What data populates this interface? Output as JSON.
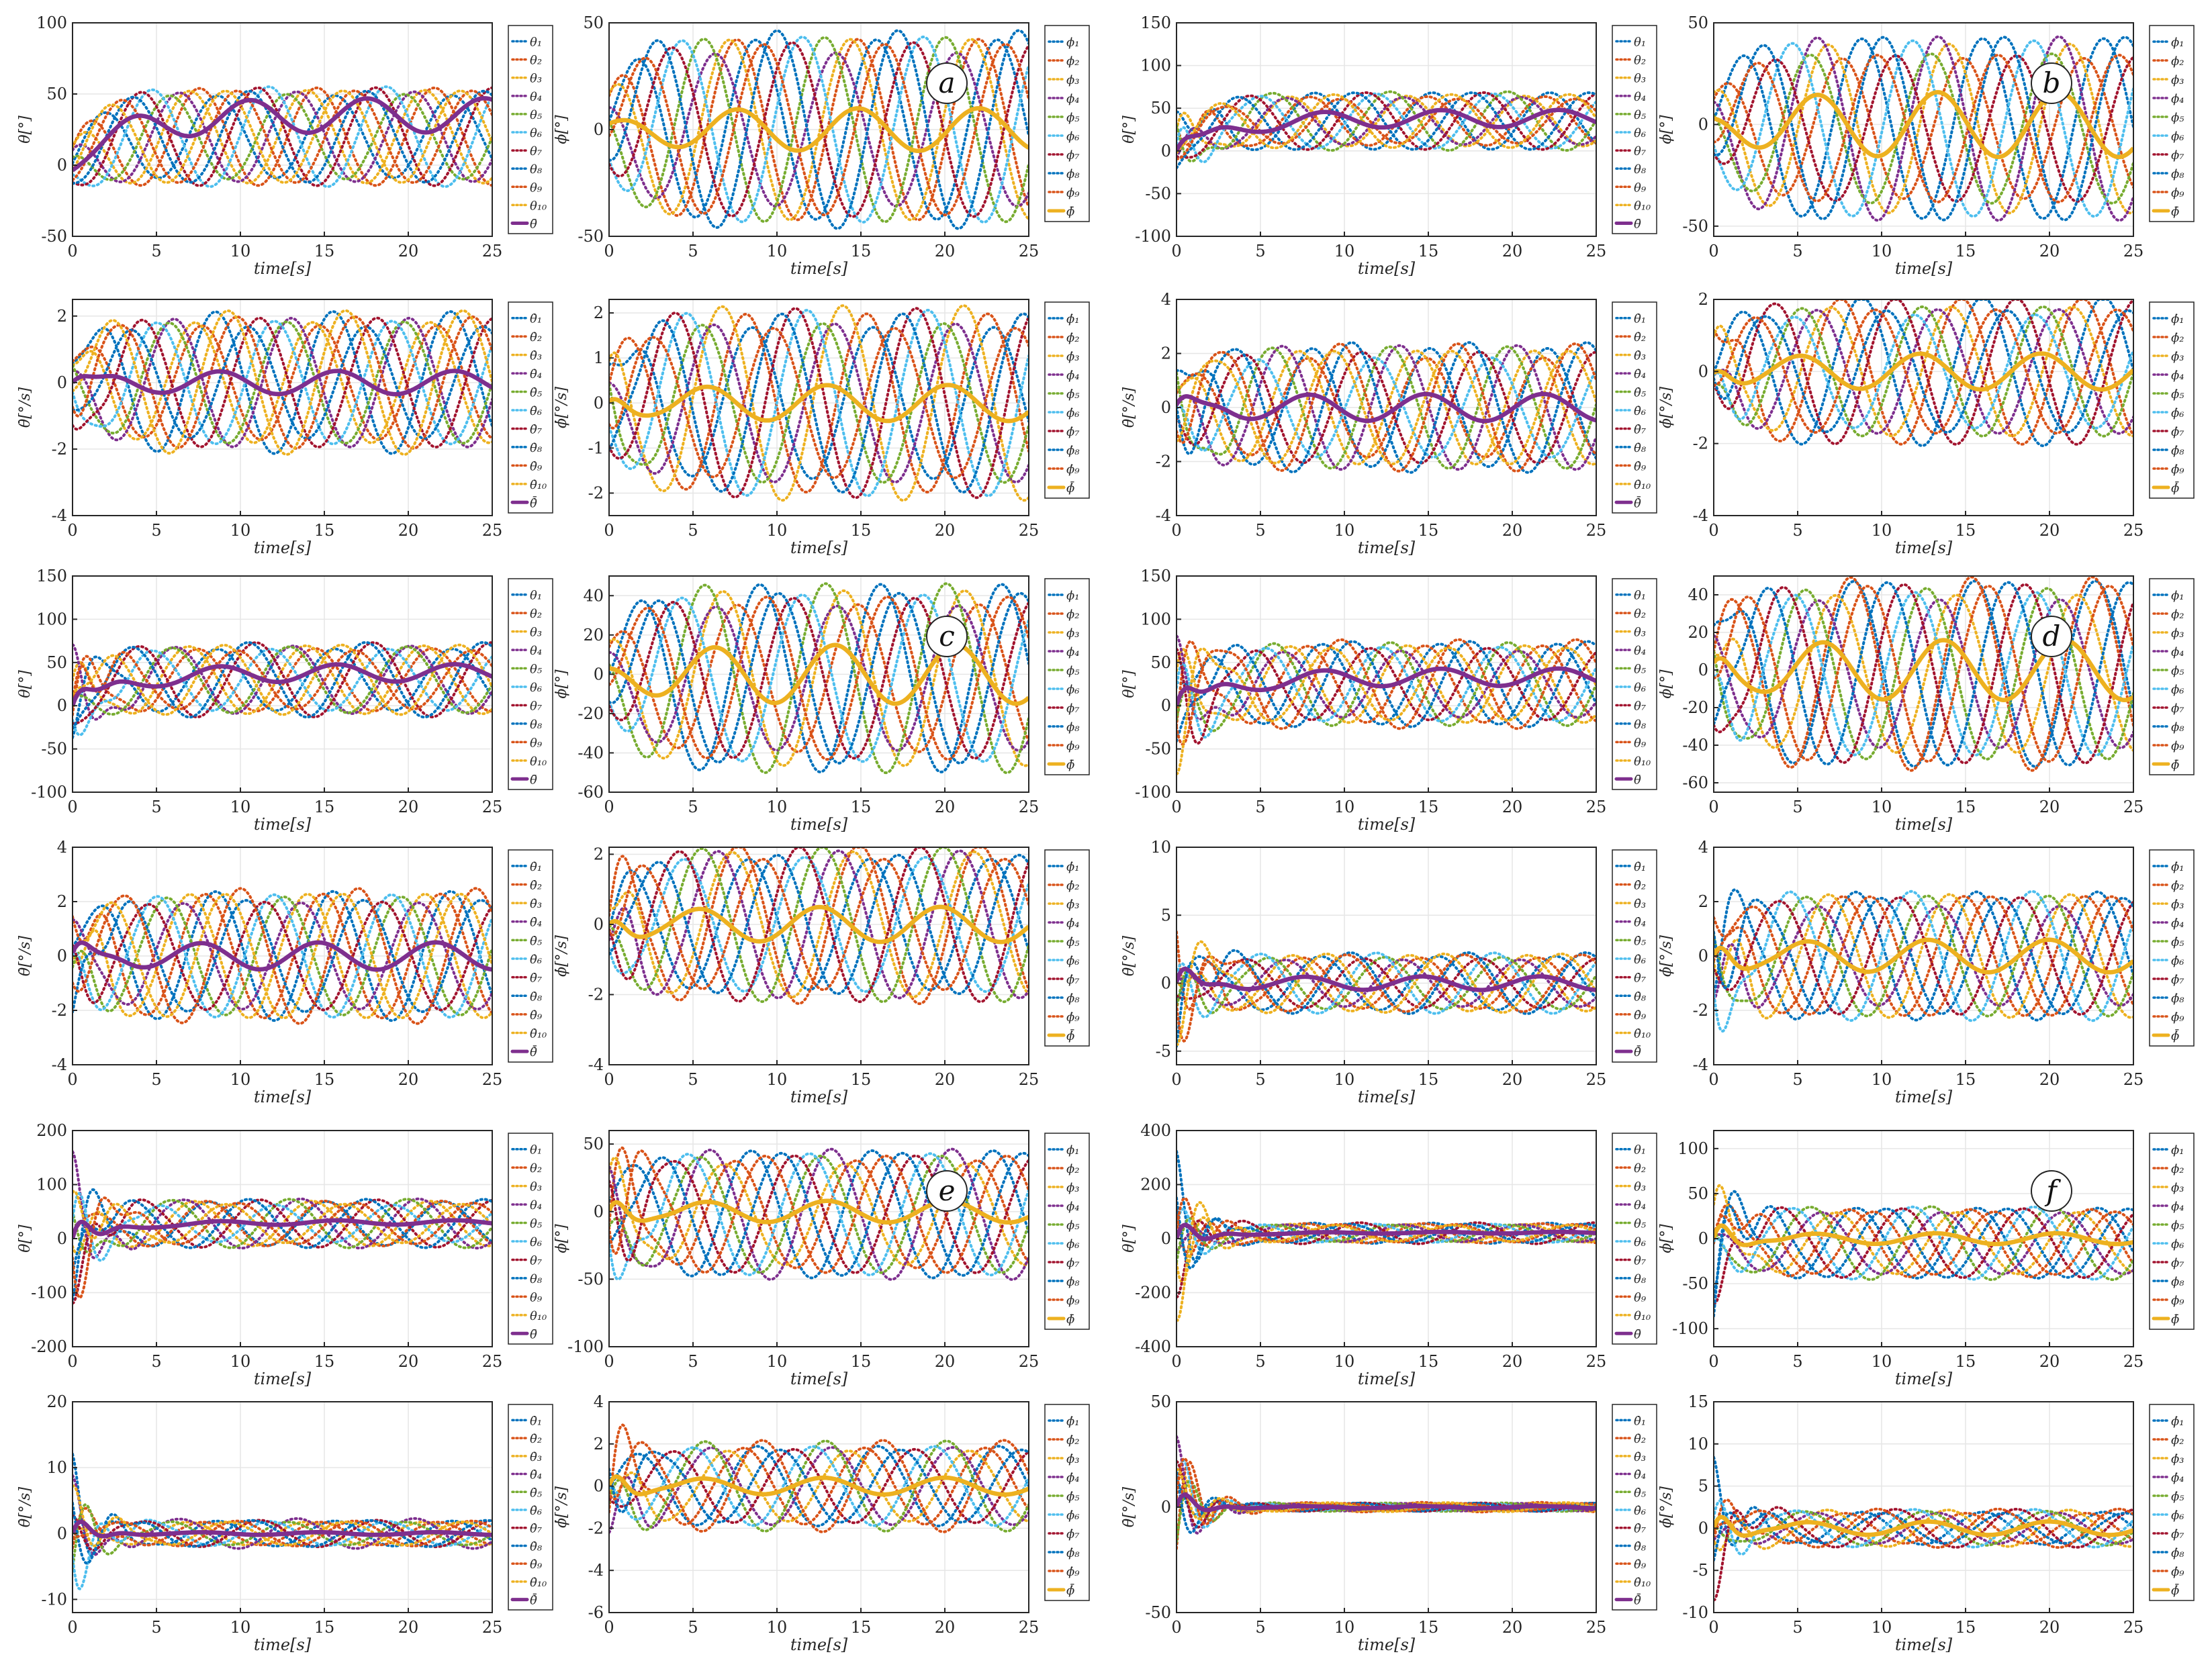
{
  "figure": {
    "columns": 4,
    "rows": 6,
    "time_axis": {
      "label": "time[s]",
      "range": [
        0,
        25
      ],
      "ticks": [
        0,
        5,
        10,
        15,
        20,
        25
      ]
    },
    "theta_legend": [
      "θ₁",
      "θ₂",
      "θ₃",
      "θ₄",
      "θ₅",
      "θ₆",
      "θ₇",
      "θ₈",
      "θ₉",
      "θ₁₀",
      "θ̄"
    ],
    "phi_legend": [
      "ϕ₁",
      "ϕ₂",
      "ϕ₃",
      "ϕ₄",
      "ϕ₅",
      "ϕ₆",
      "ϕ₇",
      "ϕ₈",
      "ϕ₉",
      "ϕ̄"
    ],
    "agent_colors": [
      "#0072BD",
      "#D95319",
      "#EDB120",
      "#7E2F8E",
      "#77AC30",
      "#4DBEEE",
      "#A2142F",
      "#0072BD",
      "#D95319",
      "#EDB120"
    ],
    "theta_mean_color": "#7E2F8E",
    "phi_mean_color": "#EDB120",
    "grid_color": "#e6e6e6"
  },
  "chart_data": [
    {
      "panel": "a",
      "type": "line",
      "row": 0,
      "col": 0,
      "kind": "theta",
      "ylabel": "θ[°]",
      "ylim": [
        -50,
        100
      ],
      "yticks": [
        -50,
        0,
        50,
        100
      ],
      "xlabel": "time[s]",
      "mean": {
        "base": 0,
        "drift": 35,
        "amp": 12,
        "period": 7,
        "phase": -1.6
      },
      "agents": {
        "amp": 32,
        "period": 7,
        "center": 20
      },
      "transient": 0
    },
    {
      "panel": "a",
      "type": "line",
      "row": 0,
      "col": 1,
      "kind": "phi",
      "ylabel": "ϕ[°]",
      "ylim": [
        -50,
        50
      ],
      "yticks": [
        -50,
        0,
        50
      ],
      "xlabel": "time[s]",
      "mean": {
        "base": 0,
        "drift": 0,
        "amp": 10,
        "period": 7.2,
        "phase": 1.2
      },
      "agents": {
        "amp": 42,
        "period": 7.2,
        "center": 0
      },
      "transient": 0,
      "annotation": "a"
    },
    {
      "panel": "b",
      "type": "line",
      "row": 0,
      "col": 2,
      "kind": "theta",
      "ylabel": "θ[°]",
      "ylim": [
        -100,
        150
      ],
      "yticks": [
        -100,
        -50,
        0,
        50,
        100,
        150
      ],
      "xlabel": "time[s]",
      "mean": {
        "base": 0,
        "drift": 38,
        "amp": 10,
        "period": 7,
        "phase": 0
      },
      "agents": {
        "amp": 30,
        "period": 7,
        "center": 35
      },
      "transient": 45
    },
    {
      "panel": "b",
      "type": "line",
      "row": 0,
      "col": 3,
      "kind": "phi",
      "ylabel": "ϕ[°]",
      "ylim": [
        -55,
        50
      ],
      "yticks": [
        -50,
        0,
        50
      ],
      "xlabel": "time[s]",
      "mean": {
        "base": 0,
        "drift": 0,
        "amp": 16,
        "period": 7.2,
        "phase": 2.5
      },
      "agents": {
        "amp": 40,
        "period": 7.2,
        "center": -2
      },
      "transient": 0,
      "annotation": "b"
    },
    {
      "panel": "a",
      "type": "line",
      "row": 1,
      "col": 0,
      "kind": "dtheta",
      "ylabel": "θ̇[°/s]",
      "ylim": [
        -4,
        2.5
      ],
      "yticks": [
        -4,
        -2,
        0,
        2
      ],
      "xlabel": "time[s]",
      "mean": {
        "base": 0,
        "drift": 0,
        "amp": 0.35,
        "period": 7,
        "phase": 0
      },
      "agents": {
        "amp": 1.9,
        "period": 7,
        "center": 0
      },
      "transient": 0.8
    },
    {
      "panel": "a",
      "type": "line",
      "row": 1,
      "col": 1,
      "kind": "dphi",
      "ylabel": "ϕ̇[°/s]",
      "ylim": [
        -2.5,
        2.3
      ],
      "yticks": [
        -2,
        -1,
        0,
        1,
        2
      ],
      "xlabel": "time[s]",
      "mean": {
        "base": 0,
        "drift": 0,
        "amp": 0.4,
        "period": 7.2,
        "phase": 2.8
      },
      "agents": {
        "amp": 1.9,
        "period": 7.2,
        "center": 0
      },
      "transient": 0.6
    },
    {
      "panel": "b",
      "type": "line",
      "row": 1,
      "col": 2,
      "kind": "dtheta",
      "ylabel": "θ̇[°/s]",
      "ylim": [
        -4,
        4
      ],
      "yticks": [
        -4,
        -2,
        0,
        2,
        4
      ],
      "xlabel": "time[s]",
      "mean": {
        "base": 0,
        "drift": 0,
        "amp": 0.5,
        "period": 7,
        "phase": 0.8
      },
      "agents": {
        "amp": 2.1,
        "period": 7,
        "center": 0
      },
      "transient": 1.5
    },
    {
      "panel": "b",
      "type": "line",
      "row": 1,
      "col": 3,
      "kind": "dphi",
      "ylabel": "ϕ̇[°/s]",
      "ylim": [
        -4,
        2
      ],
      "yticks": [
        -4,
        -2,
        0,
        2
      ],
      "xlabel": "time[s]",
      "mean": {
        "base": 0,
        "drift": 0,
        "amp": 0.5,
        "period": 7.2,
        "phase": 3.4
      },
      "agents": {
        "amp": 1.8,
        "period": 7.2,
        "center": 0
      },
      "transient": 0.8
    },
    {
      "panel": "c",
      "type": "line",
      "row": 2,
      "col": 0,
      "kind": "theta",
      "ylabel": "θ[°]",
      "ylim": [
        -100,
        150
      ],
      "yticks": [
        -100,
        -50,
        0,
        50,
        100,
        150
      ],
      "xlabel": "time[s]",
      "mean": {
        "base": 0,
        "drift": 38,
        "amp": 10,
        "period": 7,
        "phase": 0
      },
      "agents": {
        "amp": 38,
        "period": 7,
        "center": 30
      },
      "transient": 70
    },
    {
      "panel": "c",
      "type": "line",
      "row": 2,
      "col": 1,
      "kind": "phi",
      "ylabel": "ϕ[°]",
      "ylim": [
        -60,
        50
      ],
      "yticks": [
        -60,
        -40,
        -20,
        0,
        20,
        40
      ],
      "xlabel": "time[s]",
      "mean": {
        "base": 0,
        "drift": 0,
        "amp": 15,
        "period": 7.2,
        "phase": 2.4
      },
      "agents": {
        "amp": 42,
        "period": 7.2,
        "center": -2
      },
      "transient": 0,
      "annotation": "c"
    },
    {
      "panel": "d",
      "type": "line",
      "row": 2,
      "col": 2,
      "kind": "theta",
      "ylabel": "θ[°]",
      "ylim": [
        -100,
        150
      ],
      "yticks": [
        -100,
        -50,
        0,
        50,
        100,
        150
      ],
      "xlabel": "time[s]",
      "mean": {
        "base": 0,
        "drift": 33,
        "amp": 10,
        "period": 7,
        "phase": 0
      },
      "agents": {
        "amp": 45,
        "period": 7,
        "center": 25
      },
      "transient": 90
    },
    {
      "panel": "d",
      "type": "line",
      "row": 2,
      "col": 3,
      "kind": "phi",
      "ylabel": "ϕ[°]",
      "ylim": [
        -65,
        50
      ],
      "yticks": [
        -60,
        -40,
        -20,
        0,
        20,
        40
      ],
      "xlabel": "time[s]",
      "mean": {
        "base": 0,
        "drift": 0,
        "amp": 16,
        "period": 7.2,
        "phase": 2.2
      },
      "agents": {
        "amp": 45,
        "period": 7.2,
        "center": -2
      },
      "transient": 20,
      "annotation": "d"
    },
    {
      "panel": "c",
      "type": "line",
      "row": 3,
      "col": 0,
      "kind": "dtheta",
      "ylabel": "θ̇[°/s]",
      "ylim": [
        -4,
        4
      ],
      "yticks": [
        -4,
        -2,
        0,
        2,
        4
      ],
      "xlabel": "time[s]",
      "mean": {
        "base": 0,
        "drift": 0,
        "amp": 0.5,
        "period": 7,
        "phase": 1.0
      },
      "agents": {
        "amp": 2.2,
        "period": 7,
        "center": 0
      },
      "transient": 2.0
    },
    {
      "panel": "c",
      "type": "line",
      "row": 3,
      "col": 1,
      "kind": "dphi",
      "ylabel": "ϕ̇[°/s]",
      "ylim": [
        -4,
        2.2
      ],
      "yticks": [
        -4,
        -2,
        0,
        2
      ],
      "xlabel": "time[s]",
      "mean": {
        "base": 0,
        "drift": 0,
        "amp": 0.5,
        "period": 7.2,
        "phase": 3.2
      },
      "agents": {
        "amp": 2.0,
        "period": 7.2,
        "center": 0
      },
      "transient": 1.2
    },
    {
      "panel": "d",
      "type": "line",
      "row": 3,
      "col": 2,
      "kind": "dtheta",
      "ylabel": "θ̇[°/s]",
      "ylim": [
        -6,
        10
      ],
      "yticks": [
        -5,
        0,
        5,
        10
      ],
      "xlabel": "time[s]",
      "mean": {
        "base": 0,
        "drift": 0,
        "amp": 0.5,
        "period": 7,
        "phase": 1.0
      },
      "agents": {
        "amp": 2.0,
        "period": 7,
        "center": 0
      },
      "transient": 6.0
    },
    {
      "panel": "d",
      "type": "line",
      "row": 3,
      "col": 3,
      "kind": "dphi",
      "ylabel": "ϕ̇[°/s]",
      "ylim": [
        -4,
        4
      ],
      "yticks": [
        -4,
        -2,
        0,
        2,
        4
      ],
      "xlabel": "time[s]",
      "mean": {
        "base": 0,
        "drift": 0,
        "amp": 0.6,
        "period": 7.2,
        "phase": 3.0
      },
      "agents": {
        "amp": 2.1,
        "period": 7.2,
        "center": 0
      },
      "transient": 2.5
    },
    {
      "panel": "e",
      "type": "line",
      "row": 4,
      "col": 0,
      "kind": "theta",
      "ylabel": "θ[°]",
      "ylim": [
        -200,
        200
      ],
      "yticks": [
        -200,
        -100,
        0,
        100,
        200
      ],
      "xlabel": "time[s]",
      "mean": {
        "base": 0,
        "drift": 30,
        "amp": 4,
        "period": 7,
        "phase": 0
      },
      "agents": {
        "amp": 40,
        "period": 7,
        "center": 28
      },
      "transient": 180
    },
    {
      "panel": "e",
      "type": "line",
      "row": 4,
      "col": 1,
      "kind": "phi",
      "ylabel": "ϕ[°]",
      "ylim": [
        -100,
        60
      ],
      "yticks": [
        -100,
        -50,
        0,
        50
      ],
      "xlabel": "time[s]",
      "mean": {
        "base": 0,
        "drift": 0,
        "amp": 8,
        "period": 7.2,
        "phase": 2.8
      },
      "agents": {
        "amp": 42,
        "period": 7.2,
        "center": -2
      },
      "transient": 50,
      "annotation": "e"
    },
    {
      "panel": "f",
      "type": "line",
      "row": 4,
      "col": 2,
      "kind": "theta",
      "ylabel": "θ[°]",
      "ylim": [
        -400,
        400
      ],
      "yticks": [
        -400,
        -200,
        0,
        200,
        400
      ],
      "xlabel": "time[s]",
      "mean": {
        "base": 0,
        "drift": 22,
        "amp": 3,
        "period": 7,
        "phase": 0
      },
      "agents": {
        "amp": 35,
        "period": 7,
        "center": 20
      },
      "transient": 330
    },
    {
      "panel": "f",
      "type": "line",
      "row": 4,
      "col": 3,
      "kind": "phi",
      "ylabel": "ϕ[°]",
      "ylim": [
        -120,
        120
      ],
      "yticks": [
        -100,
        -50,
        0,
        50,
        100
      ],
      "xlabel": "time[s]",
      "mean": {
        "base": 0,
        "drift": 0,
        "amp": 6,
        "period": 7.2,
        "phase": 2.6
      },
      "agents": {
        "amp": 40,
        "period": 7.2,
        "center": -5
      },
      "transient": 100,
      "annotation": "f"
    },
    {
      "panel": "e",
      "type": "line",
      "row": 5,
      "col": 0,
      "kind": "dtheta",
      "ylabel": "θ̇[°/s]",
      "ylim": [
        -12,
        20
      ],
      "yticks": [
        -10,
        0,
        10,
        20
      ],
      "xlabel": "time[s]",
      "mean": {
        "base": 0,
        "drift": 0,
        "amp": 0.2,
        "period": 7,
        "phase": 1.0
      },
      "agents": {
        "amp": 2.0,
        "period": 7,
        "center": 0
      },
      "transient": 12
    },
    {
      "panel": "e",
      "type": "line",
      "row": 5,
      "col": 1,
      "kind": "dphi",
      "ylabel": "ϕ̇[°/s]",
      "ylim": [
        -6,
        4
      ],
      "yticks": [
        -6,
        -4,
        -2,
        0,
        2,
        4
      ],
      "xlabel": "time[s]",
      "mean": {
        "base": 0,
        "drift": 0,
        "amp": 0.4,
        "period": 7.2,
        "phase": 3.0
      },
      "agents": {
        "amp": 1.9,
        "period": 7.2,
        "center": 0
      },
      "transient": 3.5
    },
    {
      "panel": "f",
      "type": "line",
      "row": 5,
      "col": 2,
      "kind": "dtheta",
      "ylabel": "θ̇[°/s]",
      "ylim": [
        -50,
        50
      ],
      "yticks": [
        -50,
        0,
        50
      ],
      "xlabel": "time[s]",
      "mean": {
        "base": 0,
        "drift": 0,
        "amp": 0.5,
        "period": 7,
        "phase": 1.0
      },
      "agents": {
        "amp": 2.0,
        "period": 7,
        "center": 0
      },
      "transient": 40
    },
    {
      "panel": "f",
      "type": "line",
      "row": 5,
      "col": 3,
      "kind": "dphi",
      "ylabel": "ϕ̇[°/s]",
      "ylim": [
        -10,
        15
      ],
      "yticks": [
        -10,
        -5,
        0,
        5,
        10,
        15
      ],
      "xlabel": "time[s]",
      "mean": {
        "base": 0,
        "drift": 0,
        "amp": 0.8,
        "period": 7.2,
        "phase": 3.0
      },
      "agents": {
        "amp": 2.0,
        "period": 7.2,
        "center": 0
      },
      "transient": 10
    }
  ]
}
